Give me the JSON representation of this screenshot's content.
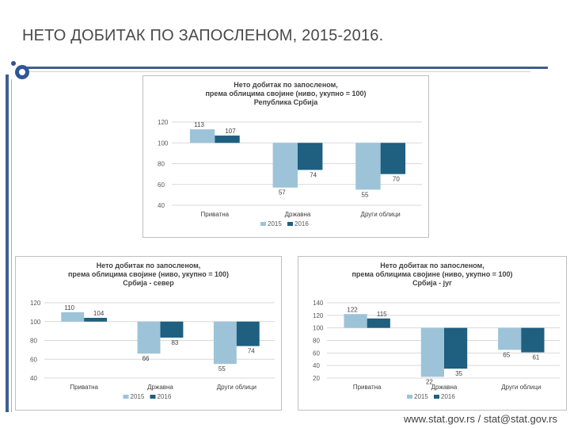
{
  "slide": {
    "title": "НЕТО ДОБИТАК ПО ЗАПОСЛЕНОМ, 2015-2016.",
    "footer": "www.stat.gov.rs / stat@stat.gov.rs"
  },
  "colors": {
    "series_2015": "#9dc3d9",
    "series_2016": "#1f5f80",
    "accent": "#2f5597"
  },
  "chart_data": [
    {
      "type": "bar",
      "title_lines": [
        "Нето добитак по запосленом,",
        "према облицима својине (ниво, укупно = 100)",
        "Република Србија"
      ],
      "categories": [
        "Приватна",
        "Државна",
        "Други облици"
      ],
      "series": [
        {
          "name": "2015",
          "values": [
            113,
            57,
            55
          ]
        },
        {
          "name": "2016",
          "values": [
            107,
            74,
            70
          ]
        }
      ],
      "baseline": 100,
      "yticks": [
        120,
        100,
        80,
        60,
        40
      ],
      "ylim": [
        40,
        120
      ],
      "grid": true,
      "legend": "bottom"
    },
    {
      "type": "bar",
      "title_lines": [
        "Нето добитак по запосленом,",
        "према облицима својине (ниво, укупно = 100)",
        "Србија - север"
      ],
      "categories": [
        "Приватна",
        "Државна",
        "Други облици"
      ],
      "series": [
        {
          "name": "2015",
          "values": [
            110,
            66,
            55
          ]
        },
        {
          "name": "2016",
          "values": [
            104,
            83,
            74
          ]
        }
      ],
      "baseline": 100,
      "yticks": [
        120,
        100,
        80,
        60,
        40
      ],
      "ylim": [
        40,
        120
      ],
      "grid": true,
      "legend": "bottom"
    },
    {
      "type": "bar",
      "title_lines": [
        "Нето добитак по запосленом,",
        "према облицима својине (ниво, укупно = 100)",
        "Србија - југ"
      ],
      "categories": [
        "Приватна",
        "Државна",
        "Други облици"
      ],
      "series": [
        {
          "name": "2015",
          "values": [
            122,
            22,
            65
          ]
        },
        {
          "name": "2016",
          "values": [
            115,
            35,
            61
          ]
        }
      ],
      "baseline": 100,
      "yticks": [
        140,
        120,
        100,
        80,
        60,
        40,
        20
      ],
      "ylim": [
        20,
        140
      ],
      "grid": true,
      "legend": "bottom"
    }
  ]
}
